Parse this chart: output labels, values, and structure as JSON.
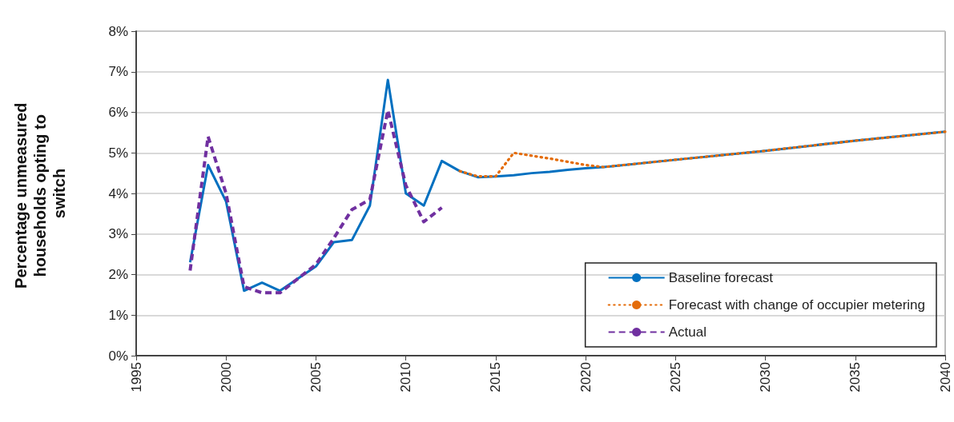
{
  "chart_data": {
    "type": "line",
    "ylabel": "Percentage unmeasured households opting to switch",
    "xlim": [
      1995,
      2040
    ],
    "xticks": [
      1995,
      2000,
      2005,
      2010,
      2015,
      2020,
      2025,
      2030,
      2035,
      2040
    ],
    "ylim": [
      0,
      8
    ],
    "yticks": [
      {
        "value": 0,
        "label": "0%"
      },
      {
        "value": 1,
        "label": "1%"
      },
      {
        "value": 2,
        "label": "2%"
      },
      {
        "value": 3,
        "label": "3%"
      },
      {
        "value": 4,
        "label": "4%"
      },
      {
        "value": 5,
        "label": "5%"
      },
      {
        "value": 6,
        "label": "6%"
      },
      {
        "value": 7,
        "label": "7%"
      },
      {
        "value": 8,
        "label": "8%"
      }
    ],
    "grid": "y",
    "legend": "bottom right",
    "marker": "none",
    "series": [
      {
        "name": "Baseline forecast",
        "color": "#0070c0",
        "line_style": "solid",
        "x": [
          1998,
          1999,
          2000,
          2001,
          2002,
          2003,
          2004,
          2005,
          2006,
          2007,
          2008,
          2009,
          2010,
          2011,
          2012,
          2013,
          2014,
          2015,
          2016,
          2017,
          2018,
          2019,
          2020,
          2021,
          2025,
          2030,
          2035,
          2040
        ],
        "values": [
          2.3,
          4.7,
          3.8,
          1.6,
          1.8,
          1.6,
          1.9,
          2.2,
          2.8,
          2.85,
          3.7,
          6.8,
          4.0,
          3.7,
          4.8,
          4.55,
          4.4,
          4.42,
          4.45,
          4.5,
          4.53,
          4.58,
          4.62,
          4.65,
          4.83,
          5.05,
          5.3,
          5.52
        ]
      },
      {
        "name": "Forecast with change of occupier metering",
        "color": "#e46c0a",
        "line_style": "dotted",
        "x": [
          2013,
          2014,
          2015,
          2016,
          2017,
          2018,
          2019,
          2020,
          2021,
          2025,
          2030,
          2035,
          2040
        ],
        "values": [
          4.55,
          4.42,
          4.42,
          5.0,
          4.93,
          4.86,
          4.78,
          4.7,
          4.65,
          4.83,
          5.05,
          5.3,
          5.52
        ]
      },
      {
        "name": "Actual",
        "color": "#7030a0",
        "line_style": "dashed",
        "x": [
          1998,
          1999,
          2000,
          2001,
          2002,
          2003,
          2004,
          2005,
          2006,
          2007,
          2008,
          2009,
          2010,
          2011,
          2012
        ],
        "values": [
          2.1,
          5.4,
          4.0,
          1.7,
          1.55,
          1.55,
          1.9,
          2.25,
          2.9,
          3.6,
          3.85,
          6.05,
          4.2,
          3.3,
          3.65
        ]
      }
    ]
  }
}
